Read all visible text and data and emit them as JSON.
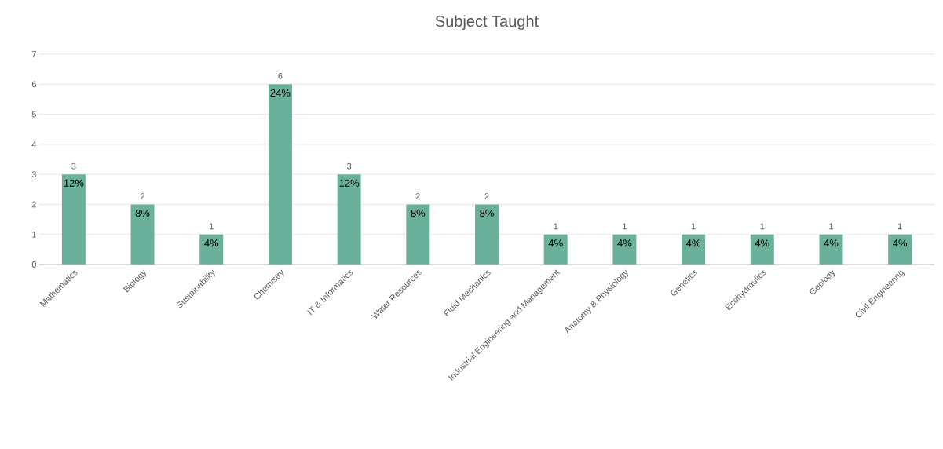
{
  "chart_data": {
    "type": "bar",
    "title": "Subject Taught",
    "categories": [
      "Mathematics",
      "Biology",
      "Sustainability",
      "Chemistry",
      "IT & Informatics",
      "Water Resources",
      "Fluid Mechanics",
      "Industrial Engineering and Management",
      "Anatomy & Physiology",
      "Genetics",
      "Ecohydraulics",
      "Geology",
      "Civil Engineering"
    ],
    "values": [
      3,
      2,
      1,
      6,
      3,
      2,
      2,
      1,
      1,
      1,
      1,
      1,
      1
    ],
    "value_labels": [
      "3",
      "2",
      "1",
      "6",
      "3",
      "2",
      "2",
      "1",
      "1",
      "1",
      "1",
      "1",
      "1"
    ],
    "annotations": [
      {
        "text": "12%",
        "x": "Mathematics",
        "y": 3
      },
      {
        "text": "8%",
        "x": "Biology",
        "y": 2
      },
      {
        "text": "4%",
        "x": "Sustainability",
        "y": 1
      },
      {
        "text": "24%",
        "x": "Chemistry",
        "y": 6
      },
      {
        "text": "12%",
        "x": "IT & Informatics",
        "y": 3
      },
      {
        "text": "8%",
        "x": "Water Resources",
        "y": 2
      },
      {
        "text": "8%",
        "x": "Fluid Mechanics",
        "y": 2
      },
      {
        "text": "4%",
        "x": "Industrial Engineering and Management",
        "y": 1
      },
      {
        "text": "4%",
        "x": "Anatomy & Physiology",
        "y": 1
      },
      {
        "text": "4%",
        "x": "Genetics",
        "y": 1
      },
      {
        "text": "4%",
        "x": "Ecohydraulics",
        "y": 1
      },
      {
        "text": "4%",
        "x": "Geology",
        "y": 1
      },
      {
        "text": "4%",
        "x": "Civil Engineering",
        "y": 1
      }
    ],
    "color": "#6bb09a",
    "ylim": [
      0,
      7
    ],
    "yticks": [
      0,
      1,
      2,
      3,
      4,
      5,
      6,
      7
    ],
    "grid": "y"
  }
}
